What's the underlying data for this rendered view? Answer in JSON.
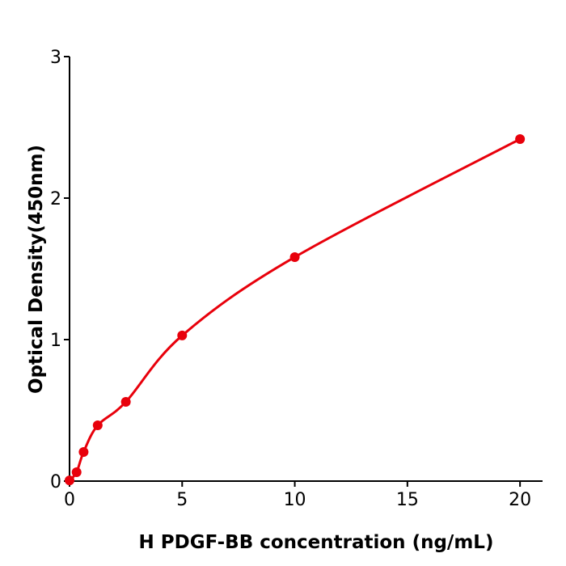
{
  "chart_data": {
    "type": "scatter",
    "title": "",
    "xlabel": "H  PDGF-BB concentration (ng/mL)",
    "ylabel": "Optical Density(450nm)",
    "xlim": [
      0,
      21
    ],
    "ylim": [
      0,
      3
    ],
    "xticks": [
      "0",
      "5",
      "10",
      "15",
      "20"
    ],
    "yticks": [
      "0",
      "1",
      "2",
      "3"
    ],
    "grid": false,
    "color": "#e8000b",
    "series": [
      {
        "x": [
          0,
          0.3125,
          0.625,
          1.25,
          2.5,
          5,
          10,
          20
        ],
        "y": [
          0.005,
          0.063,
          0.206,
          0.394,
          0.56,
          1.029,
          1.583,
          2.417
        ],
        "fit_line": true
      }
    ]
  }
}
